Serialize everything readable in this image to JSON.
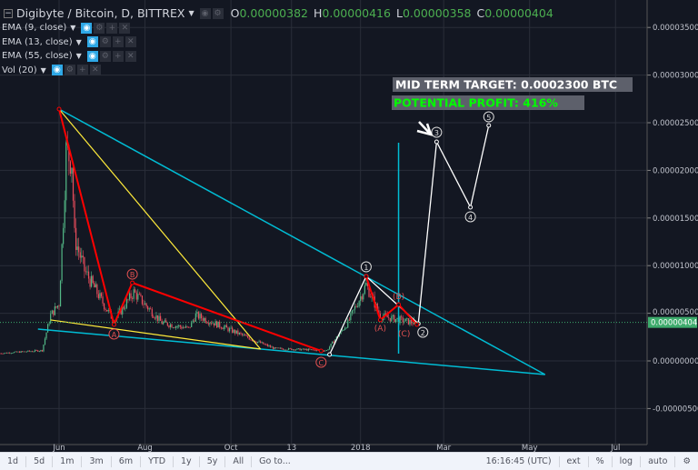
{
  "header": {
    "symbol_title": "Digibyte / Bitcoin, D, BITTREX",
    "ohlc": [
      {
        "k": "O",
        "v": "0.00000382"
      },
      {
        "k": "H",
        "v": "0.00000416"
      },
      {
        "k": "L",
        "v": "0.00000358"
      },
      {
        "k": "C",
        "v": "0.00000404"
      }
    ]
  },
  "indicators": [
    {
      "label": "EMA (9, close)"
    },
    {
      "label": "EMA (13, close)"
    },
    {
      "label": "EMA (55, close)"
    },
    {
      "label": "Vol (20)"
    }
  ],
  "annotations": {
    "target": "MID TERM TARGET: 0.0002300 BTC",
    "profit": "POTENTIAL PROFIT: 416%",
    "wave_labels": [
      "1",
      "2",
      "3",
      "4",
      "5"
    ],
    "abc_labels": [
      "A",
      "B",
      "C"
    ],
    "sub_labels": [
      "(A)",
      "(B)",
      "(C)"
    ]
  },
  "toolbar": {
    "ranges": [
      "1d",
      "5d",
      "1m",
      "3m",
      "6m",
      "YTD",
      "1y",
      "5y",
      "All",
      "Go to..."
    ],
    "time": "16:16:45 (UTC)",
    "options": [
      "ext",
      "%",
      "log",
      "auto"
    ]
  },
  "colors": {
    "background": "#131722",
    "up": "#53b987",
    "down": "#eb4d5c",
    "cyan": "#00bcd4",
    "yellow": "#ffeb3b",
    "red": "#ff0000",
    "white": "#ffffff",
    "last_price": "#3dab6c",
    "profit_text": "#00ff00"
  },
  "chart_data": {
    "type": "candlestick",
    "x_tick_labels": [
      "Jun",
      "Aug",
      "Oct",
      "13",
      "2018",
      "Mar",
      "May",
      "Jul"
    ],
    "y_tick_labels": [
      "0.00003500",
      "0.00003000",
      "0.00002500",
      "0.00002000",
      "0.00001500",
      "0.00001000",
      "0.00000500",
      "0.00000000",
      "-0.00000500"
    ],
    "ylim": [
      -7e-06,
      3.8e-05
    ],
    "last_price": "0.00000404",
    "price_path_approx": [
      [
        "2017-04-20",
        8e-07
      ],
      [
        "2017-05-20",
        1.1e-06
      ],
      [
        "2017-05-23",
        3e-06
      ],
      [
        "2017-05-26",
        4.8e-06
      ],
      [
        "2017-06-01",
        6e-06
      ],
      [
        "2017-06-04",
        1.5e-05
      ],
      [
        "2017-06-06",
        2.2e-05
      ],
      [
        "2017-06-10",
        2.1e-05
      ],
      [
        "2017-06-12",
        1.3e-05
      ],
      [
        "2017-06-19",
        9.5e-06
      ],
      [
        "2017-07-04",
        5.6e-06
      ],
      [
        "2017-07-10",
        4.2e-06
      ],
      [
        "2017-07-24",
        7.2e-06
      ],
      [
        "2017-08-13",
        4e-06
      ],
      [
        "2017-09-01",
        3.4e-06
      ],
      [
        "2017-09-06",
        4.8e-06
      ],
      [
        "2017-10-20",
        2e-06
      ],
      [
        "2017-11-01",
        1.3e-06
      ],
      [
        "2017-12-08",
        1.1e-06
      ],
      [
        "2017-12-23",
        4e-06
      ],
      [
        "2018-01-05",
        8e-06
      ],
      [
        "2018-01-15",
        4.7e-06
      ],
      [
        "2018-02-08",
        4e-06
      ]
    ]
  }
}
